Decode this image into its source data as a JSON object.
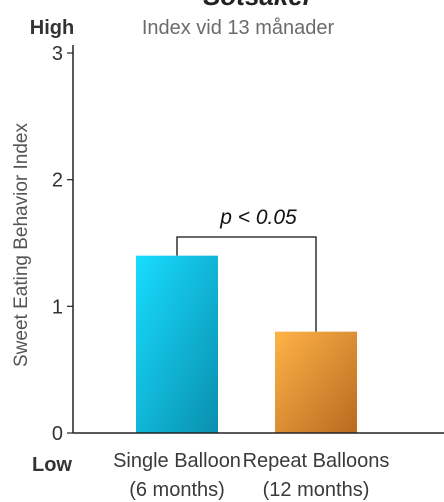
{
  "chart_data": {
    "type": "bar",
    "title": "Sötsaker",
    "subtitle": "Index vid 13 månader",
    "ylabel": "Sweet Eating Behavior Index",
    "ylim": [
      0,
      3
    ],
    "yticks": [
      "0",
      "1",
      "2",
      "3"
    ],
    "y_top_label": "High",
    "y_bottom_label": "Low",
    "grid": false,
    "categories": [
      {
        "line1": "Single Balloon",
        "line2": "(6 months)"
      },
      {
        "line1": "Repeat Balloons",
        "line2": "(12 months)"
      }
    ],
    "values": [
      1.4,
      0.8
    ],
    "colors": {
      "bar1_light": "#18dcff",
      "bar1_dark": "#0a8fae",
      "bar2_light": "#ffb347",
      "bar2_dark": "#b86a20",
      "axis": "#222222"
    },
    "annotation": {
      "text": "p < 0.05",
      "between": [
        0,
        1
      ]
    }
  }
}
